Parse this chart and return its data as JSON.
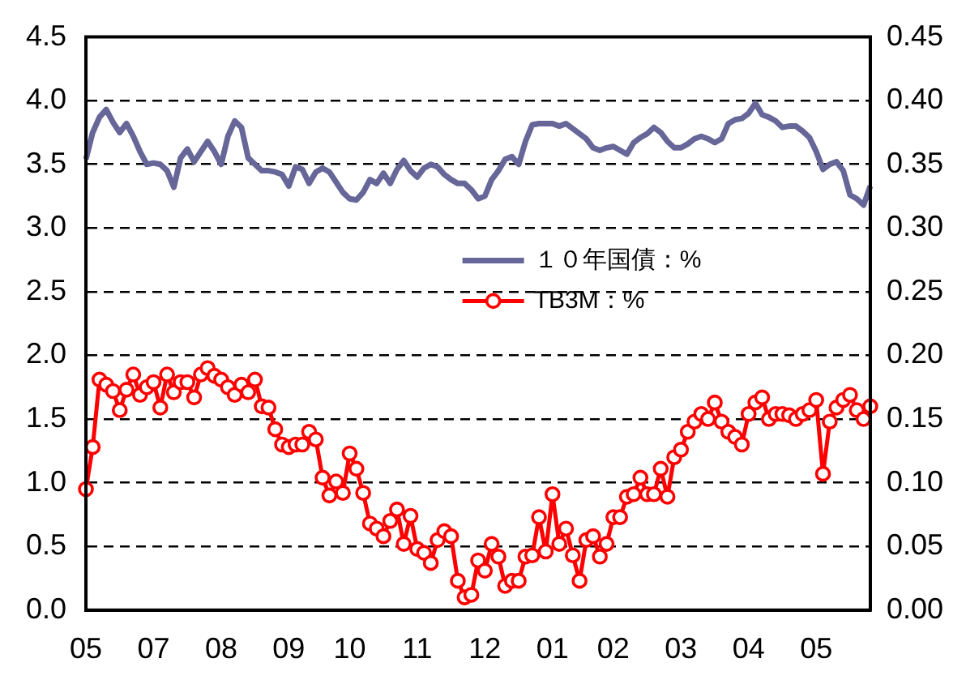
{
  "chart_data": {
    "type": "line",
    "categories": [
      "05",
      null,
      null,
      null,
      null,
      null,
      null,
      null,
      null,
      null,
      "07",
      null,
      null,
      null,
      null,
      null,
      null,
      null,
      null,
      null,
      "08",
      null,
      null,
      null,
      null,
      null,
      null,
      null,
      null,
      null,
      "09",
      null,
      null,
      null,
      null,
      null,
      null,
      null,
      null,
      "10",
      null,
      null,
      null,
      null,
      null,
      null,
      null,
      null,
      null,
      "11",
      null,
      null,
      null,
      null,
      null,
      null,
      null,
      null,
      null,
      "12",
      null,
      null,
      null,
      null,
      null,
      null,
      null,
      null,
      null,
      "01",
      null,
      null,
      null,
      null,
      null,
      null,
      null,
      null,
      "02",
      null,
      null,
      null,
      null,
      null,
      null,
      null,
      null,
      null,
      "03",
      null,
      null,
      null,
      null,
      null,
      null,
      null,
      null,
      null,
      "04",
      null,
      null,
      null,
      null,
      null,
      null,
      null,
      null,
      null,
      "05",
      null,
      null,
      null,
      null,
      null,
      null,
      null,
      null
    ],
    "series": [
      {
        "name": "１０年国債：%",
        "color": "#666699",
        "marker": "none",
        "values": [
          3.54,
          3.75,
          3.87,
          3.93,
          3.83,
          3.75,
          3.82,
          3.72,
          3.6,
          3.5,
          3.51,
          3.5,
          3.45,
          3.32,
          3.55,
          3.62,
          3.52,
          3.6,
          3.68,
          3.6,
          3.5,
          3.72,
          3.84,
          3.79,
          3.55,
          3.5,
          3.45,
          3.45,
          3.44,
          3.42,
          3.33,
          3.48,
          3.46,
          3.35,
          3.44,
          3.47,
          3.44,
          3.36,
          3.28,
          3.23,
          3.22,
          3.28,
          3.38,
          3.35,
          3.43,
          3.35,
          3.46,
          3.53,
          3.45,
          3.4,
          3.47,
          3.5,
          3.48,
          3.42,
          3.38,
          3.35,
          3.35,
          3.3,
          3.23,
          3.25,
          3.38,
          3.45,
          3.54,
          3.56,
          3.5,
          3.68,
          3.81,
          3.82,
          3.82,
          3.82,
          3.8,
          3.82,
          3.78,
          3.74,
          3.7,
          3.63,
          3.61,
          3.63,
          3.64,
          3.61,
          3.58,
          3.67,
          3.71,
          3.74,
          3.79,
          3.75,
          3.68,
          3.63,
          3.63,
          3.66,
          3.7,
          3.72,
          3.7,
          3.67,
          3.7,
          3.82,
          3.85,
          3.86,
          3.9,
          3.98,
          3.89,
          3.87,
          3.84,
          3.79,
          3.8,
          3.8,
          3.76,
          3.71,
          3.6,
          3.46,
          3.5,
          3.52,
          3.45,
          3.26,
          3.23,
          3.18,
          3.33
        ]
      },
      {
        "name": "TB3M：%",
        "color": "#ff0000",
        "marker": "circle",
        "axis": "y2",
        "values": [
          0.095,
          0.128,
          0.181,
          0.177,
          0.172,
          0.157,
          0.173,
          0.185,
          0.169,
          0.175,
          0.179,
          0.159,
          0.185,
          0.171,
          0.179,
          0.179,
          0.167,
          0.185,
          0.19,
          0.184,
          0.181,
          0.175,
          0.169,
          0.177,
          0.171,
          0.181,
          0.16,
          0.159,
          0.142,
          0.13,
          0.128,
          0.13,
          0.13,
          0.14,
          0.134,
          0.104,
          0.09,
          0.101,
          0.092,
          0.123,
          0.111,
          0.092,
          0.068,
          0.064,
          0.058,
          0.07,
          0.079,
          0.052,
          0.074,
          0.048,
          0.045,
          0.037,
          0.055,
          0.062,
          0.058,
          0.023,
          0.01,
          0.012,
          0.039,
          0.031,
          0.052,
          0.042,
          0.019,
          0.023,
          0.023,
          0.042,
          0.043,
          0.073,
          0.046,
          0.091,
          0.052,
          0.064,
          0.043,
          0.023,
          0.055,
          0.058,
          0.042,
          0.052,
          0.073,
          0.073,
          0.089,
          0.091,
          0.104,
          0.091,
          0.091,
          0.111,
          0.089,
          0.12,
          0.126,
          0.14,
          0.148,
          0.154,
          0.15,
          0.163,
          0.148,
          0.14,
          0.136,
          0.13,
          0.154,
          0.163,
          0.167,
          0.15,
          0.154,
          0.154,
          0.153,
          0.15,
          0.154,
          0.157,
          0.165,
          0.107,
          0.148,
          0.159,
          0.165,
          0.169,
          0.157,
          0.15,
          0.16
        ]
      }
    ],
    "ylim": [
      0,
      4.5
    ],
    "yticks": [
      {
        "value": 0,
        "label": "0.0"
      },
      {
        "value": 0.5,
        "label": "0.5"
      },
      {
        "value": 1,
        "label": "1.0"
      },
      {
        "value": 1.5,
        "label": "1.5"
      },
      {
        "value": 2,
        "label": "2.0"
      },
      {
        "value": 2.5,
        "label": "2.5"
      },
      {
        "value": 3,
        "label": "3.0"
      },
      {
        "value": 3.5,
        "label": "3.5"
      },
      {
        "value": 4,
        "label": "4.0"
      },
      {
        "value": 4.5,
        "label": "4.5"
      }
    ],
    "y2lim": [
      0,
      0.45
    ],
    "y2ticks": [
      {
        "value": 0,
        "label": "0.00"
      },
      {
        "value": 0.05,
        "label": "0.05"
      },
      {
        "value": 0.1,
        "label": "0.10"
      },
      {
        "value": 0.15,
        "label": "0.15"
      },
      {
        "value": 0.2,
        "label": "0.20"
      },
      {
        "value": 0.25,
        "label": "0.25"
      },
      {
        "value": 0.3,
        "label": "0.30"
      },
      {
        "value": 0.35,
        "label": "0.35"
      },
      {
        "value": 0.4,
        "label": "0.40"
      },
      {
        "value": 0.45,
        "label": "0.45"
      }
    ],
    "grid": "y",
    "legend": "center",
    "line_style": "solid"
  }
}
